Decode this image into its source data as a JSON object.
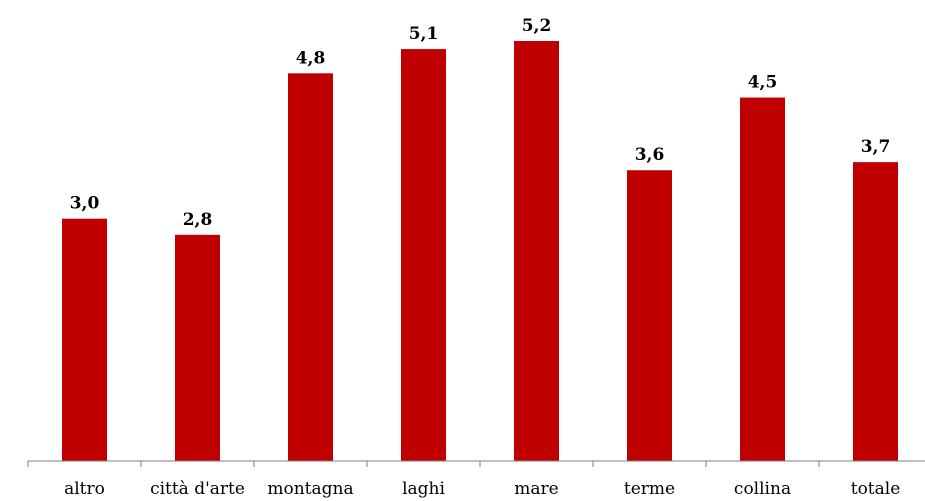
{
  "chart_data": {
    "type": "bar",
    "categories": [
      "altro",
      "città d'arte",
      "montagna",
      "laghi",
      "mare",
      "terme",
      "collina",
      "totale"
    ],
    "values": [
      3.0,
      2.8,
      4.8,
      5.1,
      5.2,
      3.6,
      4.5,
      3.7
    ],
    "value_labels": [
      "3,0",
      "2,8",
      "4,8",
      "5,1",
      "5,2",
      "3,6",
      "4,5",
      "3,7"
    ],
    "title": "",
    "xlabel": "",
    "ylabel": "",
    "ylim": [
      0,
      5.6
    ],
    "grid": false,
    "legend": "none",
    "bar_color": "#c00000"
  }
}
